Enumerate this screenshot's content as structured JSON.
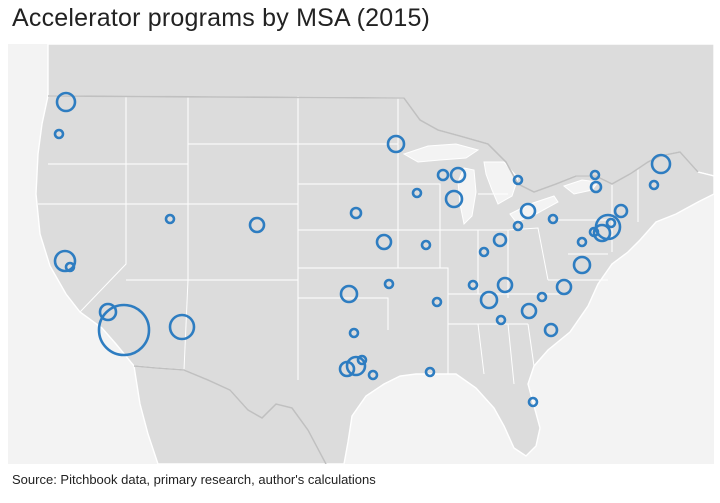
{
  "title": "Accelerator programs by MSA (2015)",
  "source": "Source: Pitchbook data, primary research, author's calculations",
  "colors": {
    "bubble": "#2e7dc1",
    "land": "#dcdcdc",
    "water": "#f3f3f3"
  },
  "markers": [
    {
      "size": 9
    },
    {
      "size": 4
    },
    {
      "size": 4
    },
    {
      "size": 7
    },
    {
      "size": 10
    },
    {
      "size": 4
    },
    {
      "size": 8
    },
    {
      "size": 25
    },
    {
      "size": 12
    },
    {
      "size": 8
    },
    {
      "size": 5
    },
    {
      "size": 7
    },
    {
      "size": 4
    },
    {
      "size": 8
    },
    {
      "size": 4
    },
    {
      "size": 5
    },
    {
      "size": 7
    },
    {
      "size": 4
    },
    {
      "size": 4
    },
    {
      "size": 7
    },
    {
      "size": 4
    },
    {
      "size": 5
    },
    {
      "size": 4
    },
    {
      "size": 9
    },
    {
      "size": 6
    },
    {
      "size": 4
    },
    {
      "size": 12
    },
    {
      "size": 8
    },
    {
      "size": 4
    },
    {
      "size": 4
    },
    {
      "size": 4
    },
    {
      "size": 6
    },
    {
      "size": 4
    },
    {
      "size": 8
    },
    {
      "size": 8
    },
    {
      "size": 4
    },
    {
      "size": 4
    },
    {
      "size": 4
    },
    {
      "size": 8
    },
    {
      "size": 7
    },
    {
      "size": 4
    },
    {
      "size": 7
    },
    {
      "size": 4
    },
    {
      "size": 7
    },
    {
      "size": 4
    },
    {
      "size": 9
    },
    {
      "size": 7
    },
    {
      "size": 4
    },
    {
      "size": 4
    },
    {
      "size": 4
    },
    {
      "size": 4
    },
    {
      "size": 6
    }
  ]
}
